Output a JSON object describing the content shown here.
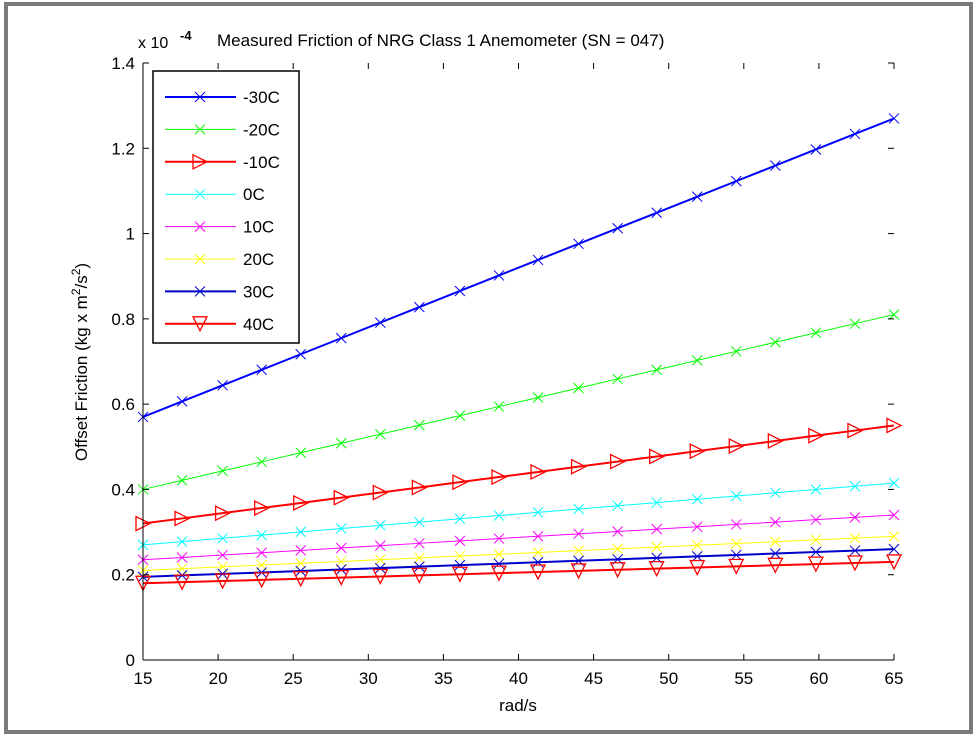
{
  "chart_data": {
    "type": "line",
    "title": "Measured Friction of NRG Class 1 Anemometer (SN = 047)",
    "xlabel": "rad/s",
    "ylabel": "Offset Friction (kg x m²/s²)",
    "y_multiplier_text": "x 10",
    "y_multiplier_exp": "-4",
    "xlim": [
      15,
      65
    ],
    "ylim": [
      0,
      1.4
    ],
    "x_ticks": [
      "15",
      "20",
      "25",
      "30",
      "35",
      "40",
      "45",
      "50",
      "55",
      "60",
      "65"
    ],
    "y_ticks": [
      "0",
      "0.2",
      "0.4",
      "0.6",
      "0.8",
      "1",
      "1.2",
      "1.4"
    ],
    "grid": false,
    "legend_position": "top-left",
    "x": [
      15,
      17.6,
      20.3,
      22.9,
      25.5,
      28.2,
      30.8,
      33.4,
      36.1,
      38.7,
      41.3,
      44,
      46.6,
      49.2,
      51.9,
      54.5,
      57.1,
      59.8,
      62.4,
      65
    ],
    "series": [
      {
        "name": "-30C",
        "color": "#0000ff",
        "marker": "x",
        "linewidth": 2,
        "start": 0.57,
        "end": 1.27
      },
      {
        "name": "-20C",
        "color": "#00ff00",
        "marker": "x",
        "linewidth": 1,
        "start": 0.4,
        "end": 0.81
      },
      {
        "name": "-10C",
        "color": "#ff0000",
        "marker": "triangle-right",
        "linewidth": 2,
        "start": 0.32,
        "end": 0.55
      },
      {
        "name": "0C",
        "color": "#00ffff",
        "marker": "x",
        "linewidth": 1,
        "start": 0.27,
        "end": 0.415
      },
      {
        "name": "10C",
        "color": "#ff00ff",
        "marker": "x",
        "linewidth": 1,
        "start": 0.235,
        "end": 0.34
      },
      {
        "name": "20C",
        "color": "#ffff00",
        "marker": "x",
        "linewidth": 1,
        "start": 0.21,
        "end": 0.29
      },
      {
        "name": "30C",
        "color": "#0000cc",
        "marker": "x",
        "linewidth": 2,
        "start": 0.195,
        "end": 0.26
      },
      {
        "name": "40C",
        "color": "#ff0000",
        "marker": "triangle-down",
        "linewidth": 2,
        "start": 0.18,
        "end": 0.23
      }
    ]
  }
}
